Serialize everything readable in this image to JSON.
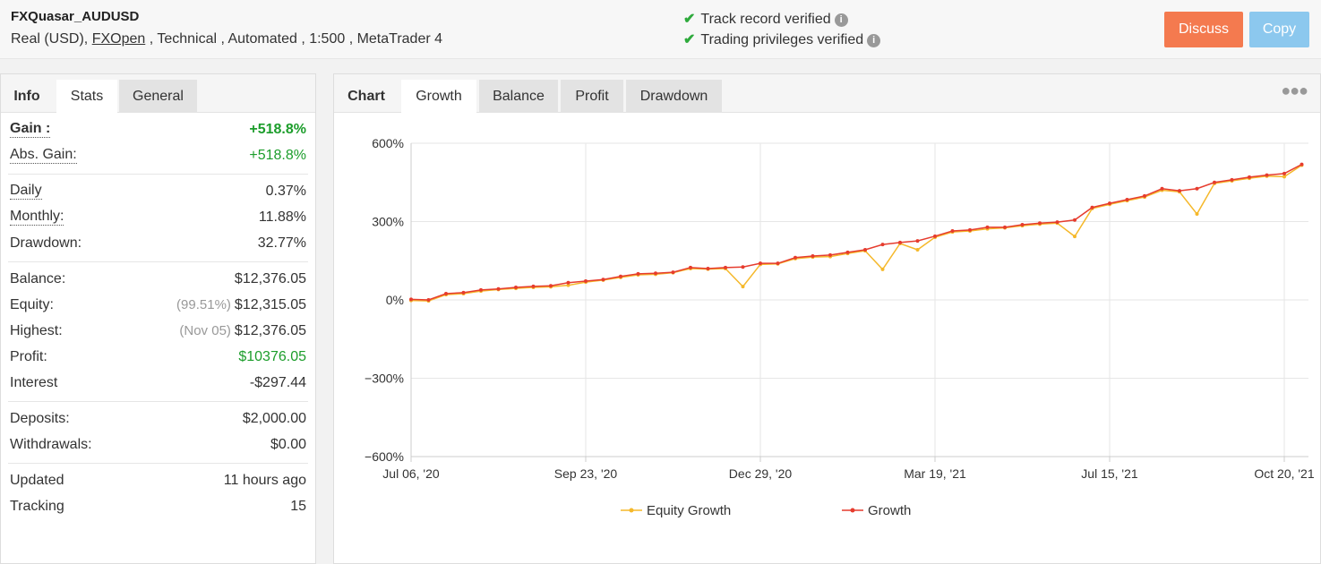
{
  "header": {
    "title": "FXQuasar_AUDUSD",
    "subtitle_start": "Real (USD), ",
    "broker": "FXOpen",
    "subtitle_end": " , Technical , Automated , 1:500 , MetaTrader 4",
    "verifications": [
      "Track record verified",
      "Trading privileges verified"
    ],
    "buttons": [
      "Discuss",
      "Copy"
    ]
  },
  "left_tabs": [
    "Info",
    "Stats",
    "General"
  ],
  "stats": [
    [
      {
        "label": "Gain :",
        "value": "+518.8%"
      },
      {
        "label": "Abs. Gain:",
        "value": "+518.8%"
      }
    ],
    [
      {
        "label": "Daily",
        "value": "0.37%"
      },
      {
        "label": "Monthly:",
        "value": "11.88%"
      },
      {
        "label": "Drawdown:",
        "value": "32.77%"
      }
    ],
    [
      {
        "label": "Balance:",
        "value": "$12,376.05"
      },
      {
        "label": "Equity:",
        "note": "(99.51%)",
        "value": "$12,315.05"
      },
      {
        "label": "Highest:",
        "note": "(Nov 05)",
        "value": "$12,376.05"
      },
      {
        "label": "Profit:",
        "value": "$10376.05"
      },
      {
        "label": "Interest",
        "value": "-$297.44"
      }
    ],
    [
      {
        "label": "Deposits:",
        "value": "$2,000.00"
      },
      {
        "label": "Withdrawals:",
        "value": "$0.00"
      }
    ],
    [
      {
        "label": "Updated",
        "value": "11 hours ago"
      },
      {
        "label": "Tracking",
        "value": "15"
      }
    ]
  ],
  "chart_tabs": [
    "Chart",
    "Growth",
    "Balance",
    "Profit",
    "Drawdown"
  ],
  "chart_data": {
    "type": "line",
    "categories": [
      "Jul 06, '20",
      null,
      null,
      null,
      null,
      null,
      null,
      null,
      null,
      null,
      "Sep 23, '20",
      null,
      null,
      null,
      null,
      null,
      null,
      null,
      null,
      null,
      "Dec 29, '20",
      null,
      null,
      null,
      null,
      null,
      null,
      null,
      null,
      null,
      "Mar 19, '21",
      null,
      null,
      null,
      null,
      null,
      null,
      null,
      null,
      null,
      "Jul 15, '21",
      null,
      null,
      null,
      null,
      null,
      null,
      null,
      null,
      null,
      "Oct 20, '21",
      null
    ],
    "series": [
      {
        "name": "Equity Growth",
        "color": "#f5b82a",
        "values": [
          -2,
          -4,
          20,
          24,
          34,
          40,
          44,
          48,
          50,
          56,
          68,
          76,
          86,
          96,
          98,
          104,
          120,
          118,
          120,
          51,
          136,
          138,
          158,
          164,
          166,
          178,
          188,
          117,
          216,
          192,
          240,
          260,
          264,
          272,
          276,
          284,
          290,
          294,
          243,
          350,
          366,
          380,
          394,
          420,
          414,
          329,
          446,
          456,
          466,
          474,
          472,
          516
        ]
      },
      {
        "name": "Growth",
        "color": "#e63c2e",
        "values": [
          2,
          0,
          24,
          28,
          38,
          42,
          48,
          52,
          54,
          66,
          72,
          78,
          90,
          100,
          102,
          106,
          124,
          120,
          124,
          126,
          140,
          140,
          162,
          168,
          172,
          182,
          192,
          212,
          220,
          226,
          244,
          264,
          268,
          278,
          278,
          288,
          294,
          298,
          306,
          354,
          370,
          384,
          398,
          426,
          418,
          426,
          450,
          460,
          470,
          478,
          484,
          519
        ]
      }
    ],
    "ylim": [
      -600,
      600
    ],
    "yticks": [
      {
        "value": 600,
        "label": "600%"
      },
      {
        "value": 300,
        "label": "300%"
      },
      {
        "value": 0,
        "label": "0%"
      },
      {
        "value": -300,
        "label": "−300%"
      },
      {
        "value": -600,
        "label": "−600%"
      }
    ],
    "grid": true
  }
}
